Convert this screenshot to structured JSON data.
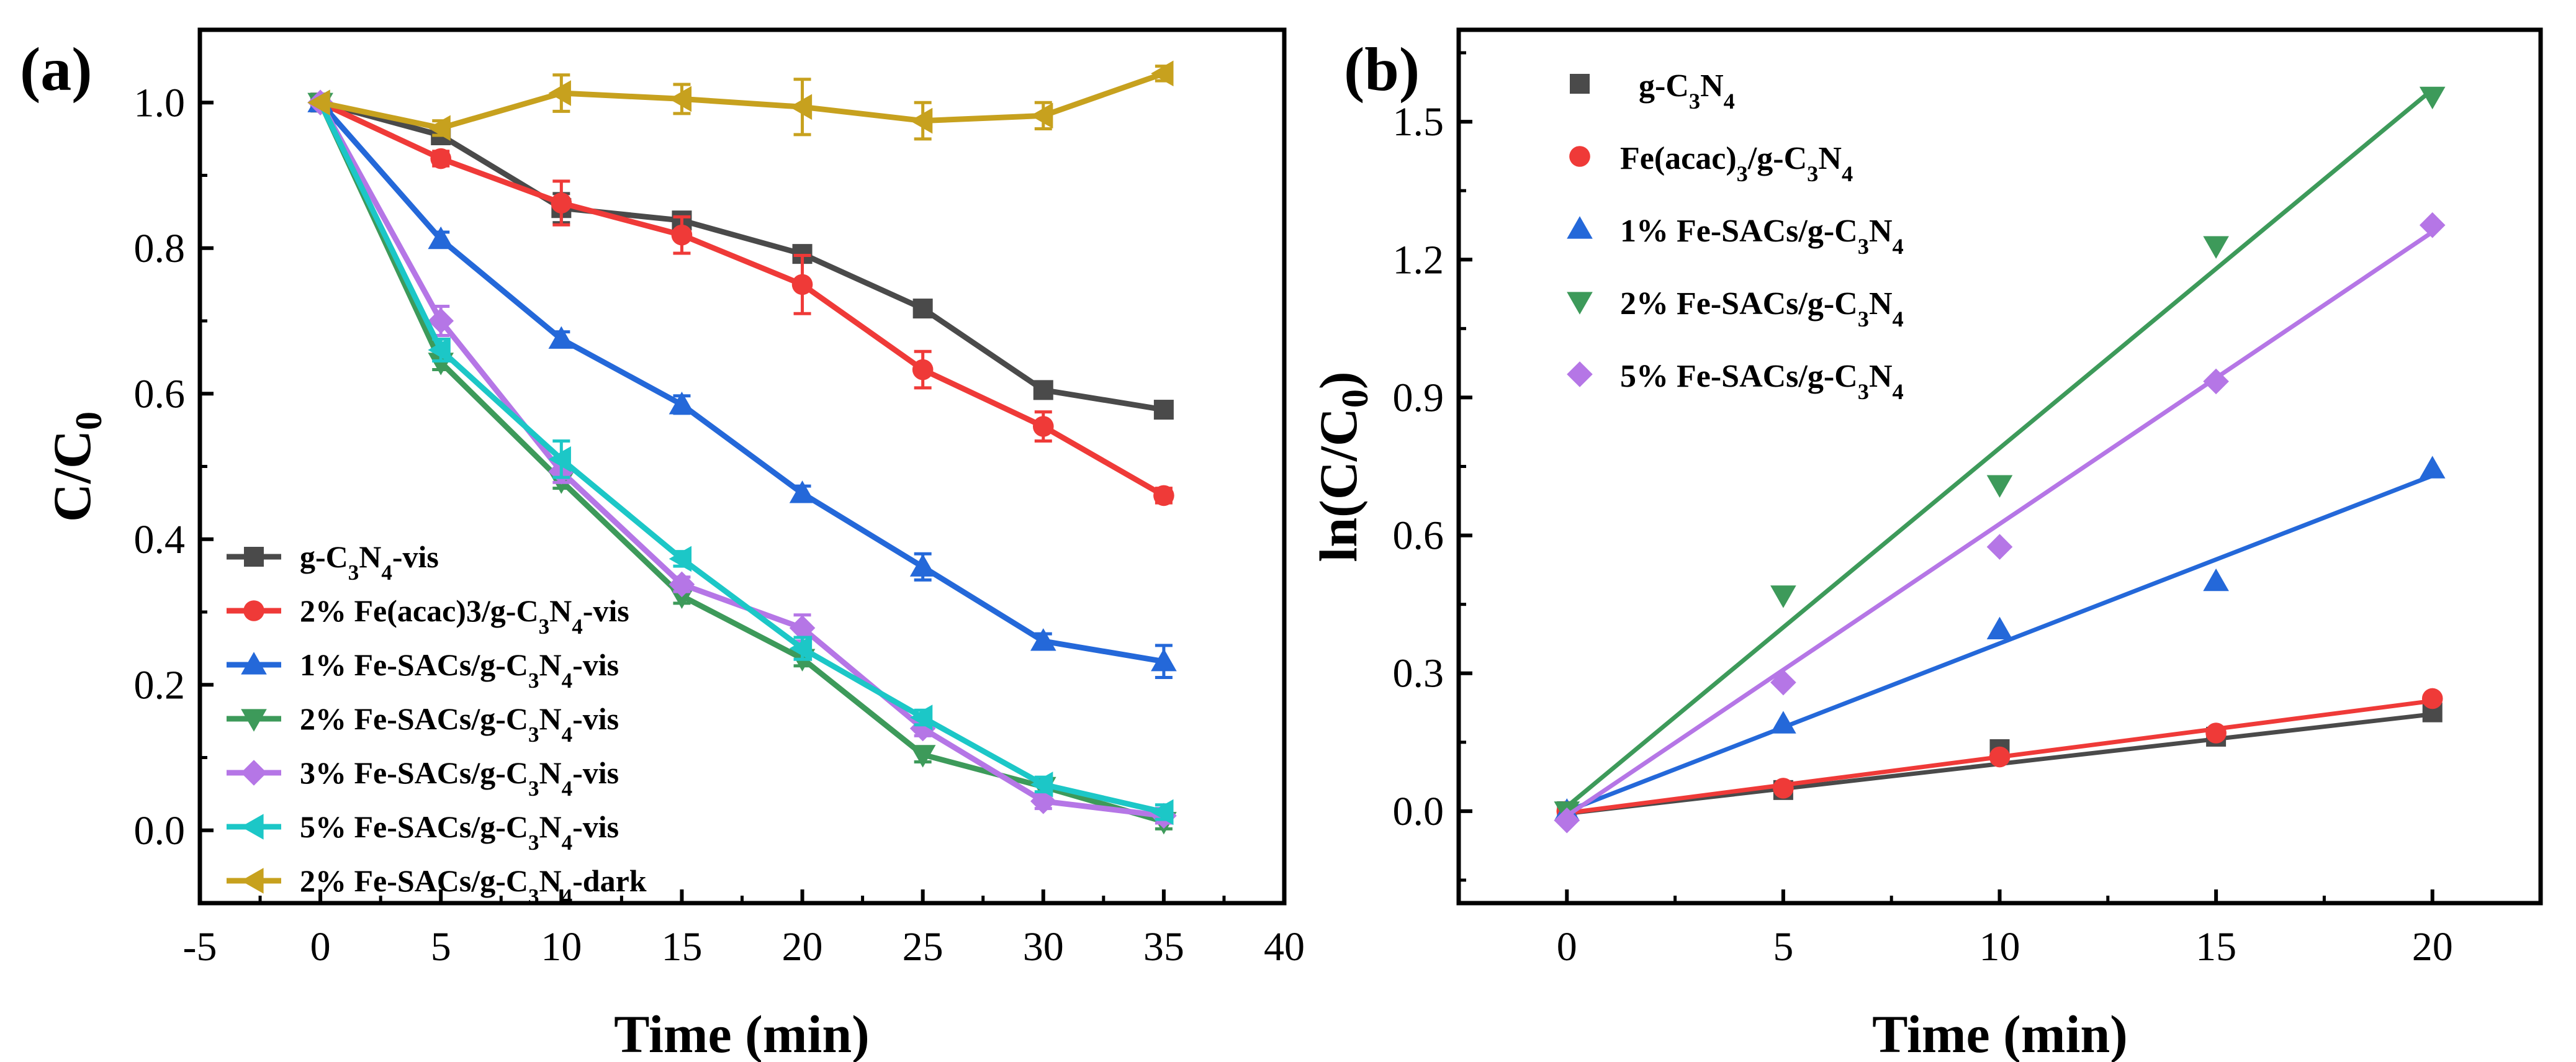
{
  "chart_data": [
    {
      "panel_label": "(a)",
      "type": "line",
      "xlabel": "Time (min)",
      "ylabel": "C/C",
      "ylabel_sub": "0",
      "xlim": [
        -5,
        40
      ],
      "ylim": [
        -0.1,
        1.1
      ],
      "xticks": [
        "-5",
        "0",
        "5",
        "10",
        "15",
        "20",
        "25",
        "30",
        "35",
        "40"
      ],
      "yticks": [
        "0.0",
        "0.2",
        "0.4",
        "0.6",
        "0.8",
        "1.0"
      ],
      "x": [
        0,
        5,
        10,
        15,
        20,
        25,
        30,
        35
      ],
      "legend_position": "bottom-left",
      "series": [
        {
          "name": "g-C3N4-vis",
          "label": [
            [
              "g-C",
              ""
            ],
            [
              "3",
              "sub"
            ],
            [
              "N",
              ""
            ],
            [
              "4",
              "sub"
            ],
            [
              "-vis",
              ""
            ]
          ],
          "color": "#4a4a4a",
          "marker": "square",
          "values": [
            1.0,
            0.955,
            0.855,
            0.838,
            0.792,
            0.717,
            0.605,
            0.578
          ],
          "errors": [
            0,
            0.01,
            0.02,
            0.01,
            0.01,
            0.01,
            0.01,
            0.01
          ]
        },
        {
          "name": "2% Fe(acac)3/g-C3N4-vis",
          "label": [
            [
              "2% Fe(acac)3/g-C",
              ""
            ],
            [
              "3",
              "sub"
            ],
            [
              "N",
              ""
            ],
            [
              "4",
              "sub"
            ],
            [
              "-vis",
              ""
            ]
          ],
          "color": "#ef3a38",
          "marker": "circle",
          "values": [
            1.0,
            0.923,
            0.862,
            0.818,
            0.75,
            0.633,
            0.555,
            0.46
          ],
          "errors": [
            0,
            0.01,
            0.03,
            0.025,
            0.04,
            0.025,
            0.02,
            0.01
          ]
        },
        {
          "name": "1% Fe-SACs/g-C3N4-vis",
          "label": [
            [
              "1% Fe-SACs/g-C",
              ""
            ],
            [
              "3",
              "sub"
            ],
            [
              "N",
              ""
            ],
            [
              "4",
              "sub"
            ],
            [
              "-vis",
              ""
            ]
          ],
          "color": "#2468d9",
          "marker": "triangle-up",
          "values": [
            1.0,
            0.812,
            0.675,
            0.585,
            0.463,
            0.362,
            0.26,
            0.232
          ],
          "errors": [
            0,
            0.01,
            0.01,
            0.012,
            0.01,
            0.018,
            0.01,
            0.022
          ]
        },
        {
          "name": "2% Fe-SACs/g-C3N4-vis",
          "label": [
            [
              "2% Fe-SACs/g-C",
              ""
            ],
            [
              "3",
              "sub"
            ],
            [
              "N",
              ""
            ],
            [
              "4",
              "sub"
            ],
            [
              "-vis",
              ""
            ]
          ],
          "color": "#3d9a5a",
          "marker": "triangle-down",
          "values": [
            1.0,
            0.643,
            0.48,
            0.322,
            0.236,
            0.104,
            0.06,
            0.012
          ],
          "errors": [
            0,
            0.01,
            0.01,
            0.01,
            0.01,
            0.01,
            0.01,
            0.01
          ]
        },
        {
          "name": "3% Fe-SACs/g-C3N4-vis",
          "label": [
            [
              "3% Fe-SACs/g-C",
              ""
            ],
            [
              "3",
              "sub"
            ],
            [
              "N",
              ""
            ],
            [
              "4",
              "sub"
            ],
            [
              "-vis",
              ""
            ]
          ],
          "color": "#b576e6",
          "marker": "diamond",
          "values": [
            1.0,
            0.7,
            0.493,
            0.338,
            0.278,
            0.14,
            0.04,
            0.02
          ],
          "errors": [
            0,
            0.02,
            0.015,
            0.01,
            0.018,
            0.01,
            0.01,
            0.01
          ]
        },
        {
          "name": "5% Fe-SACs/g-C3N4-vis",
          "label": [
            [
              "5% Fe-SACs/g-C",
              ""
            ],
            [
              "3",
              "sub"
            ],
            [
              "N",
              ""
            ],
            [
              "4",
              "sub"
            ],
            [
              "-vis",
              ""
            ]
          ],
          "color": "#1cc7c7",
          "marker": "triangle-left",
          "values": [
            1.0,
            0.66,
            0.51,
            0.373,
            0.25,
            0.155,
            0.063,
            0.025
          ],
          "errors": [
            0,
            0.015,
            0.025,
            0.01,
            0.015,
            0.01,
            0.01,
            0.01
          ]
        },
        {
          "name": "2% Fe-SACs/g-C3N4-dark",
          "label": [
            [
              "2% Fe-SACs/g-C",
              ""
            ],
            [
              "3",
              "sub"
            ],
            [
              "N",
              ""
            ],
            [
              "4",
              "sub"
            ],
            [
              "-dark",
              ""
            ]
          ],
          "color": "#c7a11e",
          "marker": "triangle-left",
          "values": [
            1.0,
            0.965,
            1.013,
            1.005,
            0.994,
            0.975,
            0.982,
            1.04
          ],
          "errors": [
            0,
            0.01,
            0.025,
            0.02,
            0.038,
            0.025,
            0.018,
            0.01
          ]
        }
      ]
    },
    {
      "panel_label": "(b)",
      "type": "scatter",
      "xlabel": "Time (min)",
      "ylabel": "ln(C/C",
      "ylabel_sub": "0",
      "ylabel_end": ")",
      "xlim": [
        -2.5,
        22.5
      ],
      "ylim": [
        -0.2,
        1.7
      ],
      "xticks": [
        "0",
        "5",
        "10",
        "15",
        "20"
      ],
      "yticks": [
        "0.0",
        "0.3",
        "0.6",
        "0.9",
        "1.2",
        "1.5"
      ],
      "x": [
        0,
        5,
        10,
        15,
        20
      ],
      "legend_position": "top-left",
      "series": [
        {
          "name": "g-C3N4",
          "label": [
            [
              "g-C",
              ""
            ],
            [
              "3",
              "sub"
            ],
            [
              "N",
              ""
            ],
            [
              "4",
              "sub"
            ]
          ],
          "color": "#4a4a4a",
          "marker": "square",
          "values": [
            0.0,
            0.046,
            0.135,
            0.162,
            0.215
          ],
          "fit": [
            -0.005,
            0.0108
          ]
        },
        {
          "name": "Fe(acac)3/g-C3N4",
          "label": [
            [
              "Fe(acac)",
              ""
            ],
            [
              "3",
              "sub"
            ],
            [
              "/g-C",
              ""
            ],
            [
              "3",
              "sub"
            ],
            [
              "N",
              ""
            ],
            [
              "4",
              "sub"
            ]
          ],
          "color": "#ef3a38",
          "marker": "circle",
          "values": [
            0.0,
            0.05,
            0.118,
            0.17,
            0.245
          ],
          "fit": [
            -0.004,
            0.0122
          ]
        },
        {
          "name": "1% Fe-SACs/g-C3N4",
          "label": [
            [
              "1% Fe-SACs/g-C",
              ""
            ],
            [
              "3",
              "sub"
            ],
            [
              "N",
              ""
            ],
            [
              "4",
              "sub"
            ]
          ],
          "color": "#2468d9",
          "marker": "triangle-up",
          "values": [
            0.0,
            0.19,
            0.395,
            0.5,
            0.745
          ],
          "fit": [
            0.0,
            0.0365
          ]
        },
        {
          "name": "2% Fe-SACs/g-C3N4",
          "label": [
            [
              "2% Fe-SACs/g-C",
              ""
            ],
            [
              "3",
              "sub"
            ],
            [
              "N",
              ""
            ],
            [
              "4",
              "sub"
            ]
          ],
          "color": "#3d9a5a",
          "marker": "triangle-down",
          "values": [
            0.0,
            0.47,
            0.71,
            1.23,
            1.555
          ],
          "fit": [
            0.01,
            0.078
          ]
        },
        {
          "name": "5% Fe-SACs/g-C3N4",
          "label": [
            [
              "5% Fe-SACs/g-C",
              ""
            ],
            [
              "3",
              "sub"
            ],
            [
              "N",
              ""
            ],
            [
              "4",
              "sub"
            ]
          ],
          "color": "#b576e6",
          "marker": "diamond",
          "values": [
            -0.02,
            0.28,
            0.575,
            0.935,
            1.275
          ],
          "fit": [
            -0.01,
            0.0635
          ]
        }
      ]
    }
  ]
}
